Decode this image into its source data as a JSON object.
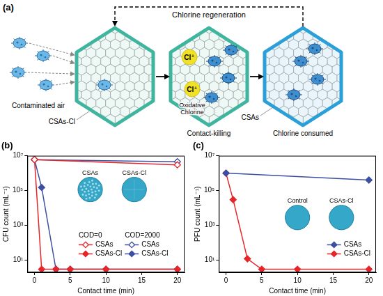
{
  "diagram": {
    "panel_label": "(a)",
    "cycle_label": "Chlorine regeneration",
    "inlet_label": "Contaminated air",
    "stages": [
      {
        "material": "CSAs-Cl"
      },
      {
        "caption": "Contact-killing",
        "chlorine_labels": [
          "Cl⁺",
          "Cl⁺"
        ],
        "callout": [
          "Oxidative",
          "Chlorine"
        ]
      },
      {
        "material": "CSAs",
        "caption": "Chlorine consumed"
      }
    ]
  },
  "chart_data": [
    {
      "type": "line",
      "title": "(b)",
      "x_label": "Contact time (min)",
      "y_label": "CFU count (mL⁻¹)",
      "log": "y",
      "grid": false,
      "legend": "bottom",
      "xlim": [
        -1,
        21
      ],
      "xticks": [
        0,
        5,
        10,
        15,
        20
      ],
      "ylim": [
        2,
        10000000
      ],
      "yticks": [
        {
          "value": 10,
          "label": "10¹"
        },
        {
          "value": 1000,
          "label": "10³"
        },
        {
          "value": 100000,
          "label": "10⁵"
        },
        {
          "value": 10000000,
          "label": "10⁷"
        }
      ],
      "insets": [
        {
          "label": "CSAs"
        },
        {
          "label": "CSAs-Cl"
        }
      ],
      "series": [
        {
          "name": "CSAs",
          "group": "COD=0",
          "color": "#e5252a",
          "marker": "diamond_open",
          "x": [
            0,
            20
          ],
          "values": [
            6000000,
            3000000
          ]
        },
        {
          "name": "CSAs-Cl",
          "group": "COD=0",
          "color": "#e5252a",
          "marker": "diamond",
          "x": [
            0,
            1,
            3,
            5,
            10,
            20
          ],
          "values": [
            6000000,
            3,
            3,
            3,
            3,
            3
          ]
        },
        {
          "name": "CSAs",
          "group": "COD=2000",
          "color": "#3d4fa0",
          "marker": "diamond_open",
          "x": [
            0,
            20
          ],
          "values": [
            6000000,
            4500000
          ]
        },
        {
          "name": "CSAs-Cl",
          "group": "COD=2000",
          "color": "#3d4fa0",
          "marker": "diamond",
          "x": [
            0,
            1,
            3,
            5,
            10,
            20
          ],
          "values": [
            6000000,
            150000,
            3,
            3,
            3,
            3
          ]
        }
      ]
    },
    {
      "type": "line",
      "title": "(c)",
      "x_label": "Contact time (min)",
      "y_label": "PFU count (mL⁻¹)",
      "log": "y",
      "grid": false,
      "legend": "bottom right",
      "xlim": [
        -1,
        21
      ],
      "xticks": [
        0,
        5,
        10,
        15,
        20
      ],
      "ylim": [
        2,
        10000000
      ],
      "yticks": [
        {
          "value": 10,
          "label": "10¹"
        },
        {
          "value": 1000,
          "label": "10³"
        },
        {
          "value": 100000,
          "label": "10⁵"
        },
        {
          "value": 10000000,
          "label": "10⁷"
        }
      ],
      "insets": [
        {
          "label": "Control"
        },
        {
          "label": "CSAs-Cl"
        }
      ],
      "series": [
        {
          "name": "CSAs",
          "color": "#3d4fa0",
          "marker": "diamond",
          "x": [
            0,
            20
          ],
          "values": [
            1000000,
            400000
          ]
        },
        {
          "name": "CSAs-Cl",
          "color": "#e5252a",
          "marker": "diamond",
          "x": [
            0,
            1,
            3,
            5,
            10,
            20
          ],
          "values": [
            1000000,
            30000,
            12,
            3,
            3,
            3
          ]
        }
      ]
    }
  ]
}
